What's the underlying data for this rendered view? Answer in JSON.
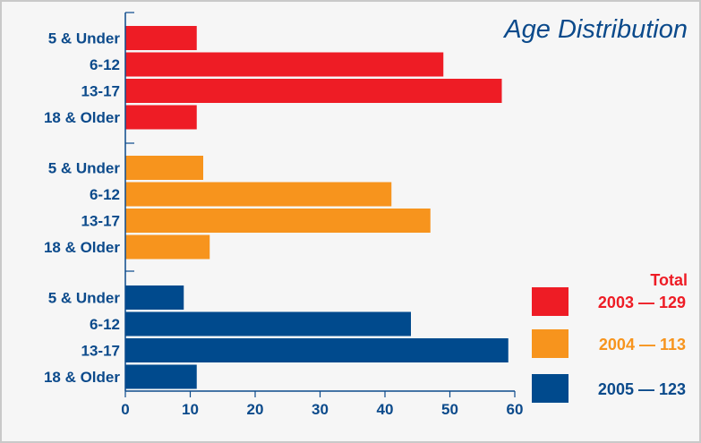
{
  "chart_data": {
    "type": "bar",
    "orientation": "horizontal",
    "title": "Age Distribution",
    "categories": [
      "5 & Under",
      "6-12",
      "13-17",
      "18 & Older"
    ],
    "xlim": [
      0,
      60
    ],
    "x_ticks": [
      "0",
      "10",
      "20",
      "30",
      "40",
      "50",
      "60"
    ],
    "legend_title": "Total",
    "series": [
      {
        "name": "2003 — 129",
        "color": "#ee1c25",
        "values": [
          11,
          49,
          58,
          11
        ]
      },
      {
        "name": "2004 — 113",
        "color": "#f7941d",
        "values": [
          12,
          41,
          47,
          13
        ]
      },
      {
        "name": "2005 — 123",
        "color": "#004a8d",
        "values": [
          9,
          44,
          59,
          11
        ]
      }
    ]
  }
}
